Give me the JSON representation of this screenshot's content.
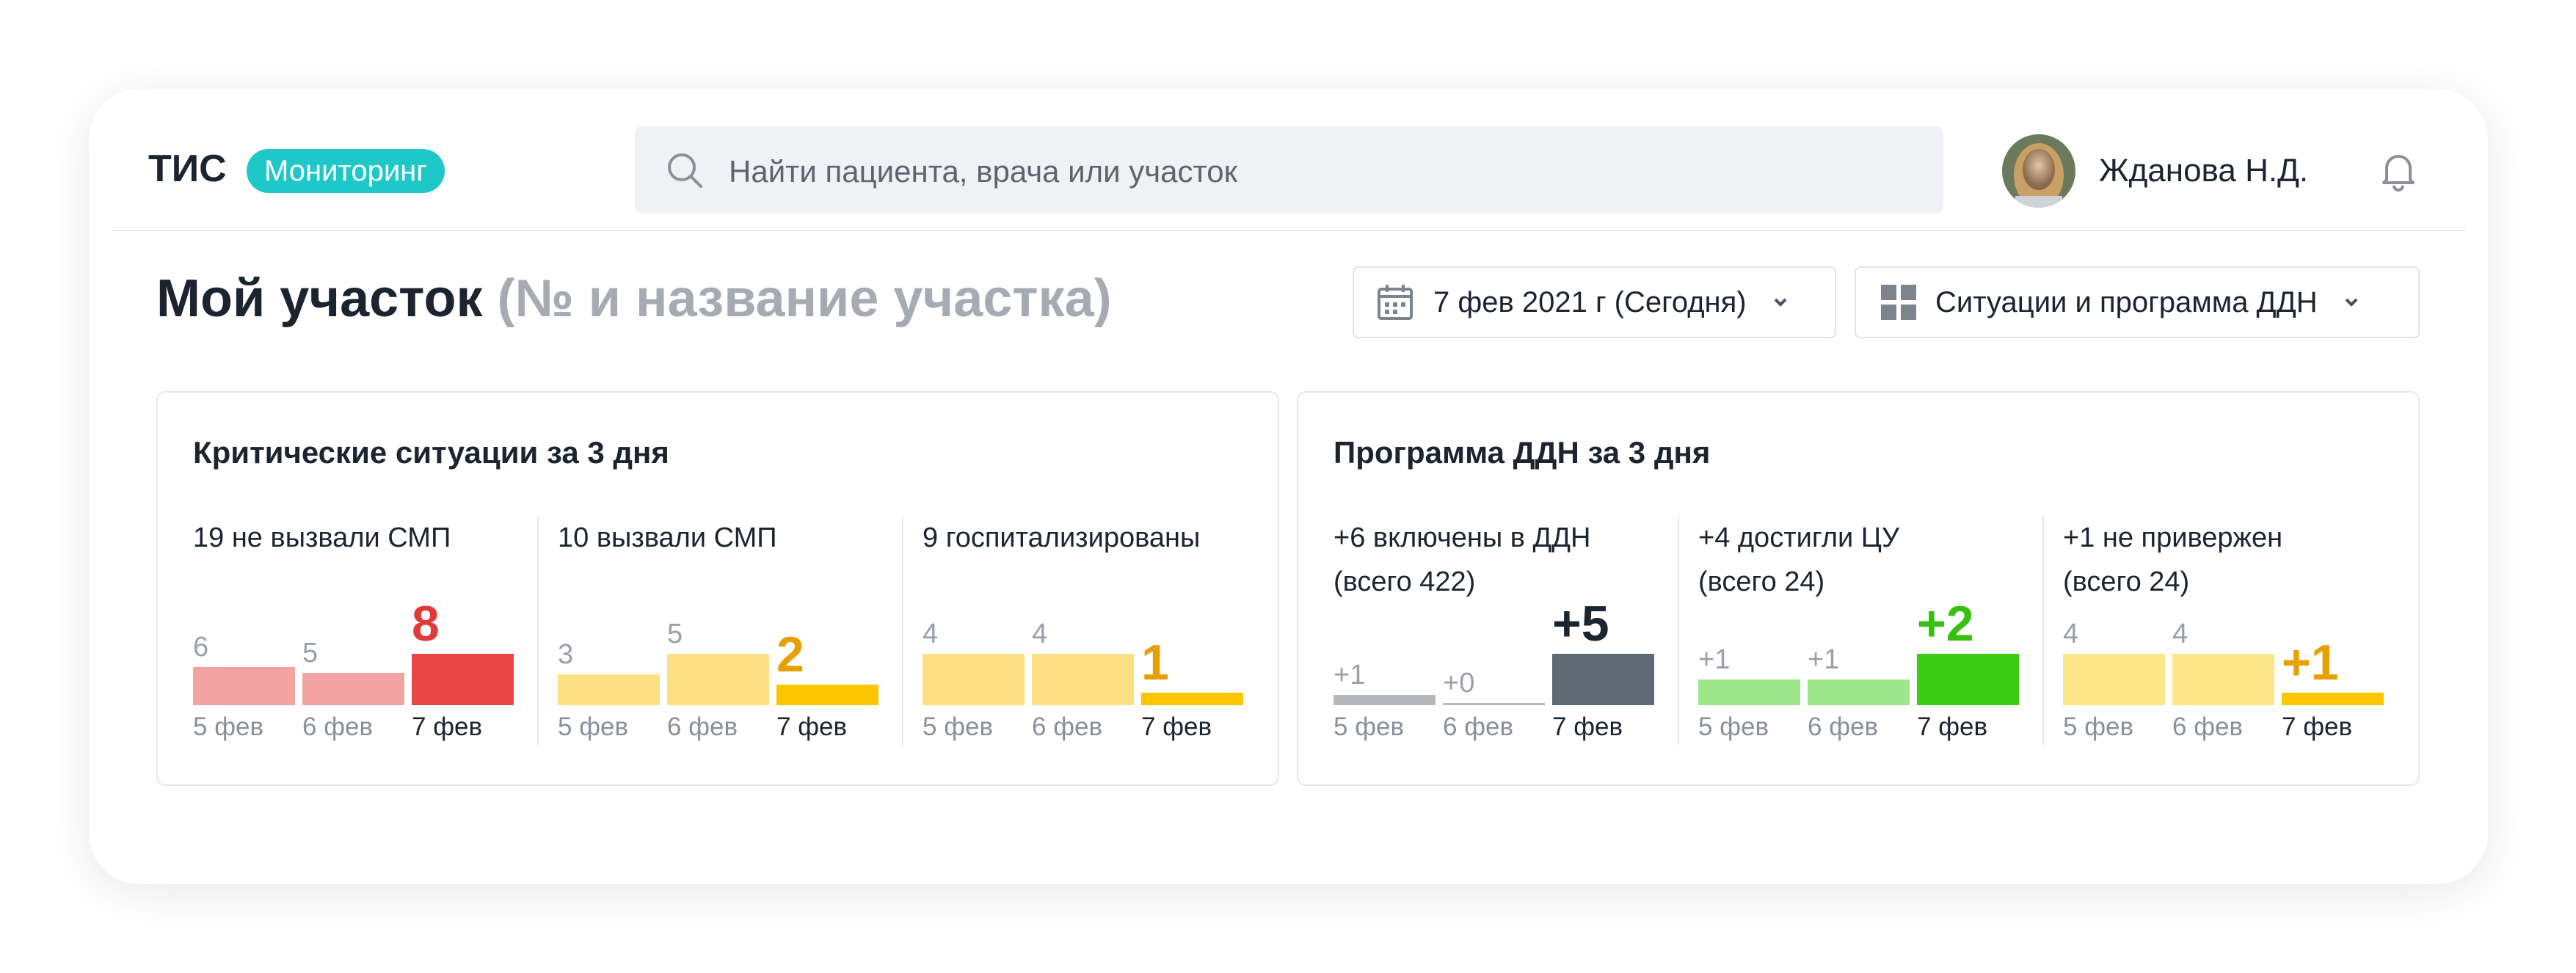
{
  "header": {
    "logo": "ТИС",
    "badge": "Мониторинг",
    "search_placeholder": "Найти пациента, врача или участок",
    "user_name": "Жданова Н.Д."
  },
  "page": {
    "title": "Мой участок",
    "subtitle": "(№ и название участка)",
    "date_filter": "7 фев 2021 г (Сегодня)",
    "view_filter": "Ситуации и программа ДДН"
  },
  "panels": [
    {
      "title": "Критические ситуации за 3 дня",
      "metrics": [
        {
          "label": "19 не вызвали СМП",
          "dates": [
            "5 фев",
            "6 фев",
            "7 фев"
          ],
          "values": [
            6,
            5,
            8
          ],
          "colors": [
            "#f4a3a3",
            "#f4a3a3",
            "#e84545"
          ],
          "highlight_color": "#e03a3a"
        },
        {
          "label": "10 вызвали СМП",
          "dates": [
            "5 фев",
            "6 фев",
            "7 фев"
          ],
          "values": [
            3,
            5,
            2
          ],
          "colors": [
            "#fde083",
            "#fde083",
            "#fbc500"
          ],
          "highlight_color": "#e8a000"
        },
        {
          "label": "9 госпитализированы",
          "dates": [
            "5 фев",
            "6 фев",
            "7 фев"
          ],
          "values": [
            4,
            4,
            1
          ],
          "colors": [
            "#fde083",
            "#fde083",
            "#fbc500"
          ],
          "highlight_color": "#e8a000"
        }
      ]
    },
    {
      "title": "Программа ДДН за 3 дня",
      "metrics": [
        {
          "label": "+6 включены в ДДН\n(всего 422)",
          "dates": [
            "5 фев",
            "6 фев",
            "7 фев"
          ],
          "values": [
            1,
            0,
            5
          ],
          "value_labels": [
            "+1",
            "+0",
            "+5"
          ],
          "colors": [
            "#b5b9bd",
            "#b5b9bd",
            "#5f6a75"
          ],
          "highlight_color": "#1c2430"
        },
        {
          "label": "+4 достигли ЦУ\n(всего 24)",
          "dates": [
            "5 фев",
            "6 фев",
            "7 фев"
          ],
          "values": [
            1,
            1,
            2
          ],
          "value_labels": [
            "+1",
            "+1",
            "+2"
          ],
          "colors": [
            "#9ee68a",
            "#9ee68a",
            "#3ccc14"
          ],
          "highlight_color": "#38c010"
        },
        {
          "label": "+1 не привержен\n(всего 24)",
          "dates": [
            "5 фев",
            "6 фев",
            "7 фев"
          ],
          "values": [
            4,
            4,
            1
          ],
          "value_labels": [
            "4",
            "4",
            "+1"
          ],
          "colors": [
            "#fde58a",
            "#fde58a",
            "#fbc500"
          ],
          "highlight_color": "#e8a000"
        }
      ]
    }
  ]
}
